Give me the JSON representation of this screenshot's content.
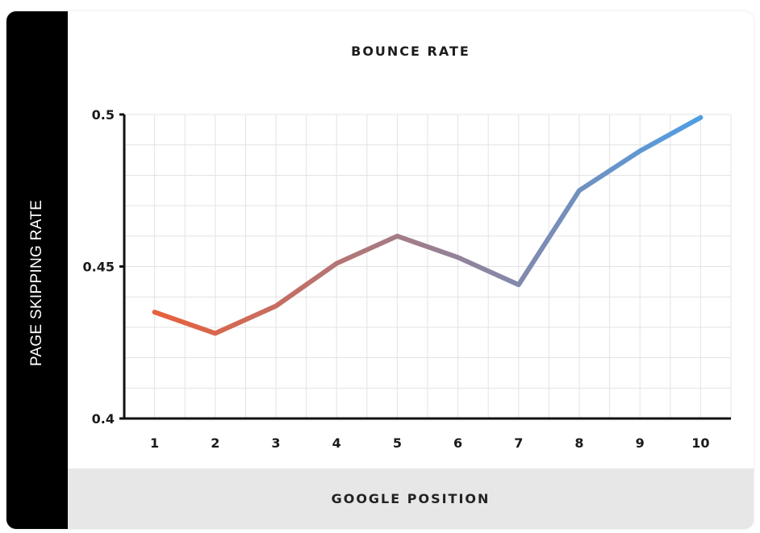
{
  "chart_data": {
    "type": "line",
    "title": "BOUNCE RATE",
    "xlabel": "GOOGLE POSITION",
    "ylabel": "PAGE SKIPPING RATE",
    "x": [
      1,
      2,
      3,
      4,
      5,
      6,
      7,
      8,
      9,
      10
    ],
    "series": [
      {
        "values": [
          0.435,
          0.428,
          0.437,
          0.451,
          0.46,
          0.453,
          0.444,
          0.475,
          0.488,
          0.499
        ]
      }
    ],
    "ylim": [
      0.4,
      0.5
    ],
    "xlim": [
      0.5,
      10.5
    ],
    "yticks": [
      "0.4",
      "0.45",
      "0.5"
    ],
    "xticks": [
      "1",
      "2",
      "3",
      "4",
      "5",
      "6",
      "7",
      "8",
      "9",
      "10"
    ],
    "grid": true,
    "legend": "none",
    "colors": {
      "start": "#e8603c",
      "end": "#4f9ee4",
      "axis": "#111111",
      "grid": "#e3e3e3"
    }
  }
}
